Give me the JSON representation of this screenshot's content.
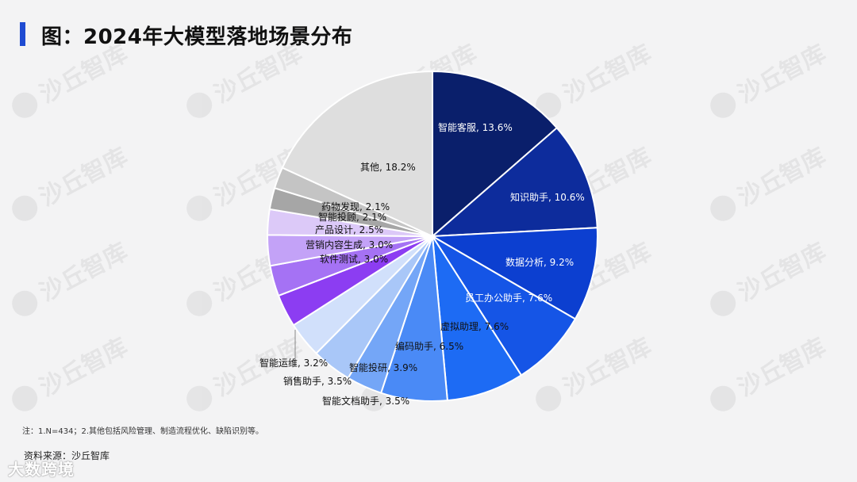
{
  "page": {
    "title": "图：2024年大模型落地场景分布",
    "footnote": "注：1.N=434；2.其他包括风险管理、制造流程优化、缺陷识别等。",
    "source": "资料来源：沙丘智库",
    "watermark_brand": "沙丘智库",
    "watermark_tag": "大数跨境"
  },
  "colors": {
    "accent": "#1f4bd2",
    "background": "#f3f3f4"
  },
  "chart_data": {
    "type": "pie",
    "title": "图：2024年大模型落地场景分布",
    "start": "12 o'clock, clockwise",
    "slices": [
      {
        "label": "智能客服, 13.6%",
        "value": 13.6,
        "color": "#0a1f6b"
      },
      {
        "label": "知识助手, 10.6%",
        "value": 10.6,
        "color": "#0d2c9c"
      },
      {
        "label": "数据分析, 9.2%",
        "value": 9.2,
        "color": "#0c3fd0"
      },
      {
        "label": "员工办公助手, 7.6%",
        "value": 7.6,
        "color": "#1555e6"
      },
      {
        "label": "虚拟助理, 7.6%",
        "value": 7.6,
        "color": "#1d6bf4"
      },
      {
        "label": "编码助手, 6.5%",
        "value": 6.5,
        "color": "#4a8af6"
      },
      {
        "label": "智能文档助手, 3.5%",
        "value": 3.5,
        "color": "#74a6f7"
      },
      {
        "label": "智能投研, 3.9%",
        "value": 3.9,
        "color": "#a9c7f8"
      },
      {
        "label": "销售助手, 3.5%",
        "value": 3.5,
        "color": "#d1e0fb"
      },
      {
        "label": "智能运维, 3.2%",
        "value": 3.2,
        "color": "#8c3df2"
      },
      {
        "label": "软件测试, 3.0%",
        "value": 3.0,
        "color": "#a572f4"
      },
      {
        "label": "营销内容生成, 3.0%",
        "value": 3.0,
        "color": "#c3a2f7"
      },
      {
        "label": "产品设计, 2.5%",
        "value": 2.5,
        "color": "#dcc9f8"
      },
      {
        "label": "智能投顾, 2.1%",
        "value": 2.1,
        "color": "#a6a6a6"
      },
      {
        "label": "药物发现, 2.1%",
        "value": 2.1,
        "color": "#c4c4c4"
      },
      {
        "label": "其他, 18.2%",
        "value": 18.2,
        "color": "#dedede"
      }
    ]
  }
}
